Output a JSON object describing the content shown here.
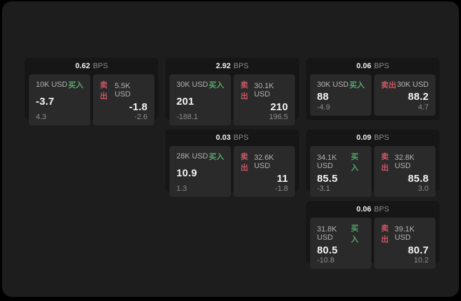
{
  "labels": {
    "bps_suffix": "BPS",
    "buy": "买入",
    "sell": "卖出"
  },
  "colors": {
    "page_bg": "#1d1d1d",
    "card_bg": "#161616",
    "panel_bg": "#2a2a2a",
    "buy": "#55a86c",
    "sell": "#cc5665",
    "value_text": "#f5f5f5",
    "muted_text": "#8d8d8d"
  },
  "cards": [
    {
      "grid": {
        "row": 1,
        "col": 1
      },
      "bps": "0.62",
      "buy": {
        "amount": "10K USD",
        "value": "-3.7",
        "delta": "4.3"
      },
      "sell": {
        "amount": "5.5K USD",
        "value": "-1.8",
        "delta": "-2.6"
      }
    },
    {
      "grid": {
        "row": 1,
        "col": 2
      },
      "bps": "2.92",
      "buy": {
        "amount": "30K USD",
        "value": "201",
        "delta": "-188.1"
      },
      "sell": {
        "amount": "30.1K USD",
        "value": "210",
        "delta": "196.5"
      }
    },
    {
      "grid": {
        "row": 1,
        "col": 3
      },
      "bps": "0.06",
      "buy": {
        "amount": "30K USD",
        "value": "88",
        "delta": "-4.9"
      },
      "sell": {
        "amount": "30K USD",
        "value": "88.2",
        "delta": "4.7"
      }
    },
    {
      "grid": {
        "row": 2,
        "col": 2
      },
      "bps": "0.03",
      "buy": {
        "amount": "28K USD",
        "value": "10.9",
        "delta": "1.3"
      },
      "sell": {
        "amount": "32.6K USD",
        "value": "11",
        "delta": "-1.8"
      }
    },
    {
      "grid": {
        "row": 2,
        "col": 3
      },
      "bps": "0.09",
      "buy": {
        "amount": "34.1K USD",
        "value": "85.5",
        "delta": "-3.1"
      },
      "sell": {
        "amount": "32.8K USD",
        "value": "85.8",
        "delta": "3.0"
      }
    },
    {
      "grid": {
        "row": 3,
        "col": 3
      },
      "bps": "0.06",
      "buy": {
        "amount": "31.8K USD",
        "value": "80.5",
        "delta": "-10.8"
      },
      "sell": {
        "amount": "39.1K USD",
        "value": "80.7",
        "delta": "10.2"
      }
    }
  ]
}
